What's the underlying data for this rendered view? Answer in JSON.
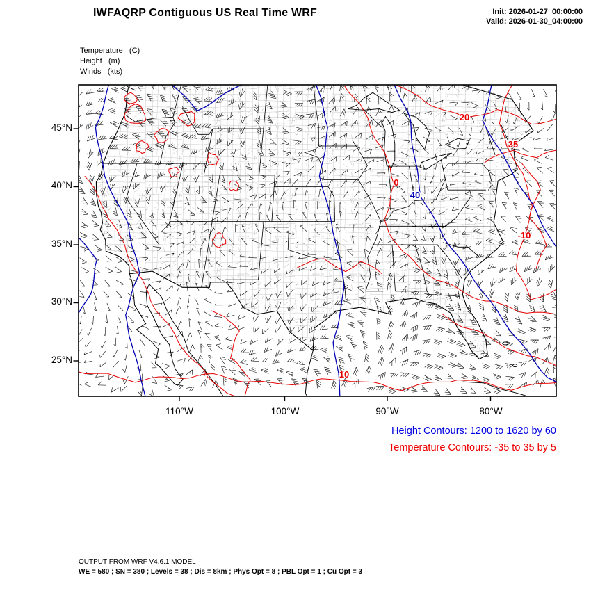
{
  "header": {
    "title": "IWFAQRP Contiguous US Real Time WRF",
    "init_label": "Init: 2026-01-27_00:00:00",
    "valid_label": "Valid: 2026-01-30_04:00:00"
  },
  "legend": {
    "temperature": "Temperature   (C)",
    "height": "Height   (m)",
    "winds": "Winds   (kts)"
  },
  "axes": {
    "y_ticks": [
      "45°N",
      "40°N",
      "35°N",
      "30°N",
      "25°N"
    ],
    "x_ticks": [
      "110°W",
      "100°W",
      "90°W",
      "80°W"
    ]
  },
  "contour_info": {
    "height_text": "Height Contours: 1200 to 1620 by 60",
    "height_color": "#0000E0",
    "temperature_text": "Temperature Contours: -35 to 35 by 5",
    "temperature_color": "#EE0000"
  },
  "footer": {
    "line1": "OUTPUT FROM WRF V4.6.1 MODEL",
    "line2": "WE = 580 ; SN = 380 ; Levels = 38 ; Dis = 8km ; Phys Opt = 8 ; PBL Opt = 1 ; Cu Opt = 3"
  },
  "chart_data": {
    "type": "contour-map",
    "title": "IWFAQRP Contiguous US Real Time WRF",
    "region": "Contiguous US",
    "init_time": "2026-01-27_00:00:00",
    "valid_time": "2026-01-30_04:00:00",
    "x_axis_ticks": [
      "110°W",
      "100°W",
      "90°W",
      "80°W"
    ],
    "y_axis_ticks": [
      "45°N",
      "40°N",
      "35°N",
      "30°N",
      "25°N"
    ],
    "fields": [
      {
        "name": "Temperature",
        "units": "C",
        "style": "red contour lines",
        "min": -35,
        "max": 35,
        "interval": 5,
        "color": "#E60000"
      },
      {
        "name": "Height",
        "units": "m",
        "style": "blue contour lines",
        "min": 1200,
        "max": 1620,
        "interval": 60,
        "color": "#0000B4"
      },
      {
        "name": "Winds",
        "units": "kts",
        "style": "wind barbs",
        "color": "#000000"
      }
    ],
    "contour_labels": [
      {
        "text": "20",
        "field": "Temperature"
      },
      {
        "text": "35",
        "field": "Temperature"
      },
      {
        "text": "0",
        "field": "Temperature"
      },
      {
        "text": "-10",
        "field": "Temperature"
      },
      {
        "text": "10",
        "field": "Temperature"
      },
      {
        "text": "40",
        "field": "Height"
      }
    ],
    "model_info": "OUTPUT FROM WRF V4.6.1 MODEL",
    "grid_info": "WE = 580 ; SN = 380 ; Levels = 38 ; Dis = 8km ; Phys Opt = 8 ; PBL Opt = 1 ; Cu Opt = 3"
  }
}
